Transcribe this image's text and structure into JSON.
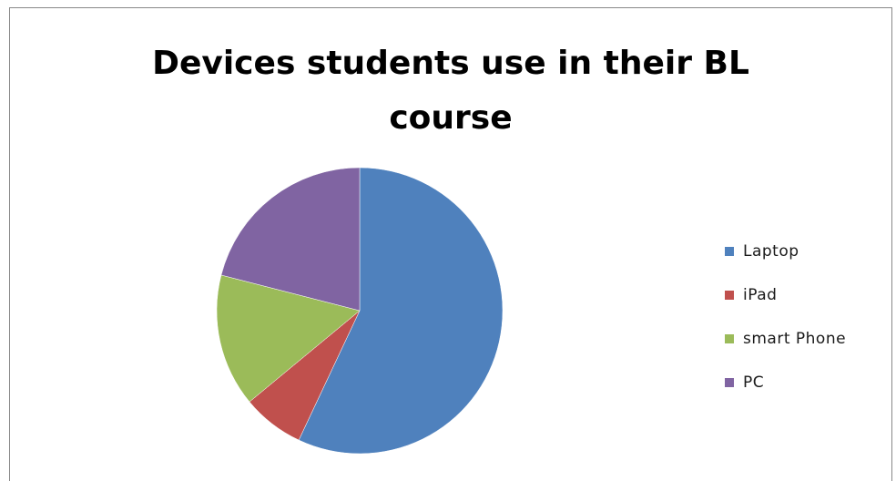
{
  "chart_data": {
    "type": "pie",
    "title_lines": [
      "Devices students use in their BL",
      "course"
    ],
    "categories": [
      "Laptop",
      "iPad",
      "smart Phone",
      "PC"
    ],
    "values": [
      57,
      7,
      15,
      21
    ],
    "colors": [
      "#4F81BD",
      "#C0504D",
      "#9BBB59",
      "#8064A2"
    ],
    "legend_position": "right"
  }
}
